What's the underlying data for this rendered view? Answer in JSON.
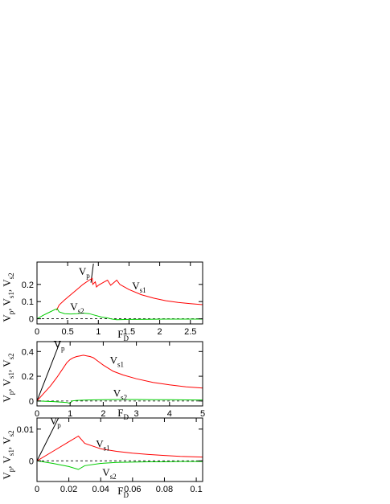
{
  "colors": {
    "Vp": "#000000",
    "Vs1": "#ff0000",
    "Vs2": "#00cc00",
    "zero": "#000000",
    "frame": "#000000"
  },
  "chart_data": [
    {
      "type": "line",
      "xlabel": {
        "main": "F",
        "sub": "D"
      },
      "ylabel": [
        "V",
        "p",
        ", V",
        "s1",
        ", V",
        "s2"
      ],
      "xlim": [
        0,
        2.7
      ],
      "ylim": [
        -0.03,
        0.33
      ],
      "xticks": [
        0,
        0.5,
        1,
        1.5,
        2,
        2.5
      ],
      "xtick_labels": [
        "0",
        "0.5",
        "1",
        "1.5",
        "2",
        "2.5"
      ],
      "yticks": [
        0,
        0.1,
        0.2
      ],
      "ytick_labels": [
        "0",
        "0.1",
        "0.2"
      ],
      "series": [
        {
          "name": "Vp",
          "color": "#000000",
          "x": [
            0.88,
            0.92
          ],
          "y": [
            0.21,
            0.32
          ]
        },
        {
          "name": "Vs1",
          "color": "#ff0000",
          "x": [
            0.32,
            0.36,
            0.45,
            0.55,
            0.65,
            0.75,
            0.85,
            0.9,
            0.91,
            0.95,
            0.97,
            1.0,
            1.05,
            1.1,
            1.15,
            1.2,
            1.25,
            1.3,
            1.35,
            1.4,
            1.5,
            1.7,
            1.9,
            2.1,
            2.3,
            2.5,
            2.7
          ],
          "y": [
            0.05,
            0.08,
            0.11,
            0.14,
            0.17,
            0.2,
            0.225,
            0.235,
            0.2,
            0.215,
            0.185,
            0.195,
            0.205,
            0.215,
            0.225,
            0.195,
            0.21,
            0.225,
            0.2,
            0.19,
            0.17,
            0.14,
            0.12,
            0.105,
            0.095,
            0.088,
            0.082
          ]
        },
        {
          "name": "Vs2",
          "color": "#00cc00",
          "x": [
            0,
            0.1,
            0.2,
            0.3,
            0.33,
            0.36,
            0.45,
            0.55,
            0.65,
            0.75,
            0.85,
            0.95,
            1.05,
            1.15,
            1.2,
            1.25,
            1.3,
            1.5,
            1.8,
            2.1,
            2.4,
            2.7
          ],
          "y": [
            0,
            0.02,
            0.038,
            0.055,
            0.058,
            0.04,
            0.03,
            0.028,
            0.03,
            0.033,
            0.03,
            0.02,
            0.01,
            0.005,
            0.0,
            -0.003,
            -0.005,
            -0.004,
            -0.003,
            -0.002,
            -0.002,
            -0.002
          ]
        }
      ],
      "annotations": [
        {
          "main": "V",
          "sub": "p",
          "x": 0.68,
          "y": 0.255
        },
        {
          "main": "V",
          "sub": "s1",
          "x": 1.55,
          "y": 0.17
        },
        {
          "main": "V",
          "sub": "s2",
          "x": 0.54,
          "y": 0.05
        }
      ]
    },
    {
      "type": "line",
      "xlabel": {
        "main": "F",
        "sub": "D"
      },
      "ylabel": [
        "V",
        "p",
        ", V",
        "s1",
        ", V",
        "s2"
      ],
      "xlim": [
        0,
        5
      ],
      "ylim": [
        -0.04,
        0.48
      ],
      "xticks": [
        0,
        1,
        2,
        3,
        4,
        5
      ],
      "xtick_labels": [
        "0",
        "1",
        "2",
        "3",
        "4",
        "5"
      ],
      "yticks": [
        0,
        0.2,
        0.4
      ],
      "ytick_labels": [
        "0",
        "0.2",
        "0.4"
      ],
      "series": [
        {
          "name": "Vp",
          "color": "#000000",
          "x": [
            0,
            0.7
          ],
          "y": [
            0,
            0.48
          ]
        },
        {
          "name": "Vs1",
          "color": "#ff0000",
          "x": [
            0,
            0.2,
            0.4,
            0.6,
            0.8,
            0.9,
            1.0,
            1.1,
            1.2,
            1.3,
            1.4,
            1.5,
            1.6,
            1.7,
            1.8,
            2.0,
            2.3,
            2.6,
            3.0,
            3.5,
            4.0,
            4.5,
            5.0
          ],
          "y": [
            0,
            0.06,
            0.12,
            0.19,
            0.27,
            0.31,
            0.335,
            0.35,
            0.36,
            0.365,
            0.37,
            0.365,
            0.36,
            0.35,
            0.33,
            0.29,
            0.24,
            0.21,
            0.18,
            0.15,
            0.13,
            0.115,
            0.105
          ]
        },
        {
          "name": "Vs2",
          "color": "#00cc00",
          "x": [
            0,
            0.5,
            0.9,
            1.0,
            1.05,
            1.2,
            1.5,
            2.0,
            2.5,
            3.0,
            3.5,
            4.0,
            4.5,
            5.0
          ],
          "y": [
            0,
            -0.005,
            -0.012,
            -0.02,
            0.0,
            0.005,
            0.008,
            0.01,
            0.012,
            0.012,
            0.011,
            0.01,
            0.009,
            0.008
          ]
        }
      ],
      "annotations": [
        {
          "main": "V",
          "sub": "p",
          "x": 0.5,
          "y": 0.43
        },
        {
          "main": "V",
          "sub": "s1",
          "x": 2.2,
          "y": 0.3
        },
        {
          "main": "V",
          "sub": "s2",
          "x": 2.3,
          "y": 0.035
        }
      ]
    },
    {
      "type": "line",
      "xlabel": {
        "main": "F",
        "sub": "D"
      },
      "ylabel": [
        "V",
        "p",
        ", V",
        "s1",
        ", V",
        "s2"
      ],
      "xlim": [
        0,
        0.104
      ],
      "ylim": [
        -0.0065,
        0.0135
      ],
      "xticks": [
        0,
        0.02,
        0.04,
        0.06,
        0.08,
        0.1
      ],
      "xtick_labels": [
        "0",
        "0.02",
        "0.04",
        "0.06",
        "0.08",
        "0.1"
      ],
      "yticks": [
        0,
        0.01
      ],
      "ytick_labels": [
        "0",
        "0.01"
      ],
      "series": [
        {
          "name": "Vp",
          "color": "#000000",
          "x": [
            0,
            0.0135
          ],
          "y": [
            0,
            0.0135
          ]
        },
        {
          "name": "Vs1",
          "color": "#ff0000",
          "x": [
            0,
            0.01,
            0.02,
            0.026,
            0.03,
            0.04,
            0.05,
            0.06,
            0.07,
            0.08,
            0.09,
            0.104
          ],
          "y": [
            0,
            0.003,
            0.006,
            0.0078,
            0.0055,
            0.0038,
            0.003,
            0.0024,
            0.002,
            0.0017,
            0.0014,
            0.0012
          ]
        },
        {
          "name": "Vs2",
          "color": "#00cc00",
          "x": [
            0,
            0.01,
            0.02,
            0.026,
            0.03,
            0.04,
            0.05,
            0.06,
            0.07,
            0.08,
            0.09,
            0.104
          ],
          "y": [
            0,
            -0.0008,
            -0.0018,
            -0.0027,
            -0.0015,
            -0.0008,
            -0.0005,
            -0.0004,
            -0.0003,
            -0.0003,
            -0.0002,
            -0.0002
          ]
        }
      ],
      "annotations": [
        {
          "main": "V",
          "sub": "p",
          "x": 0.008,
          "y": 0.0115
        },
        {
          "main": "V",
          "sub": "s1",
          "x": 0.037,
          "y": 0.0042
        },
        {
          "main": "V",
          "sub": "s2",
          "x": 0.041,
          "y": -0.0047
        }
      ]
    }
  ]
}
